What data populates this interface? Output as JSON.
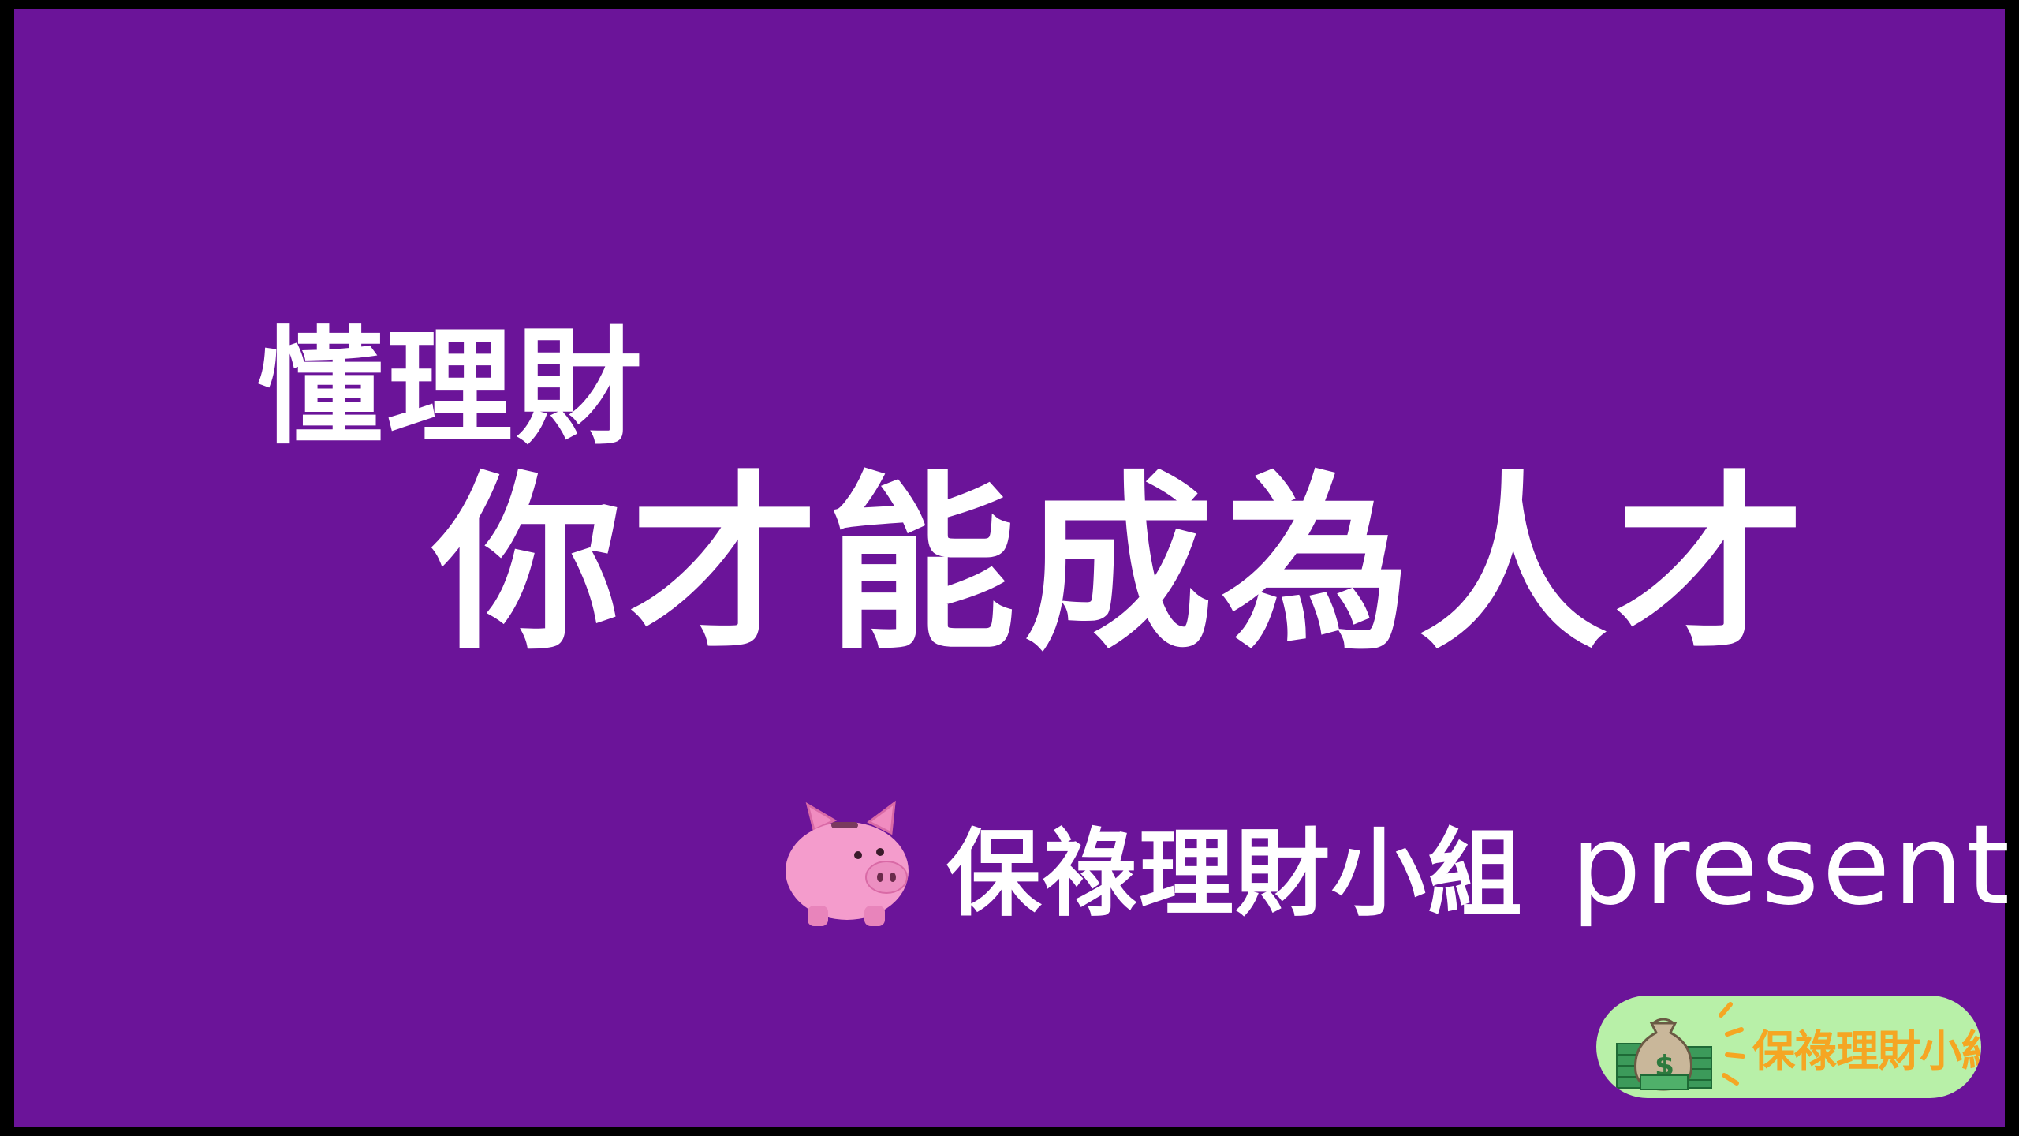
{
  "headline": {
    "line1": "懂理財",
    "line2": "你才能成為人才"
  },
  "presenter": {
    "icon": "piggy-bank-icon",
    "name": "保祿理財小組",
    "suffix": "present"
  },
  "badge": {
    "icon": "money-bag-icon",
    "label": "保祿理財小組"
  },
  "colors": {
    "background": "#6b1499",
    "text": "#ffffff",
    "badge_bg": "#b8f0a8",
    "badge_text": "#f5a623"
  }
}
